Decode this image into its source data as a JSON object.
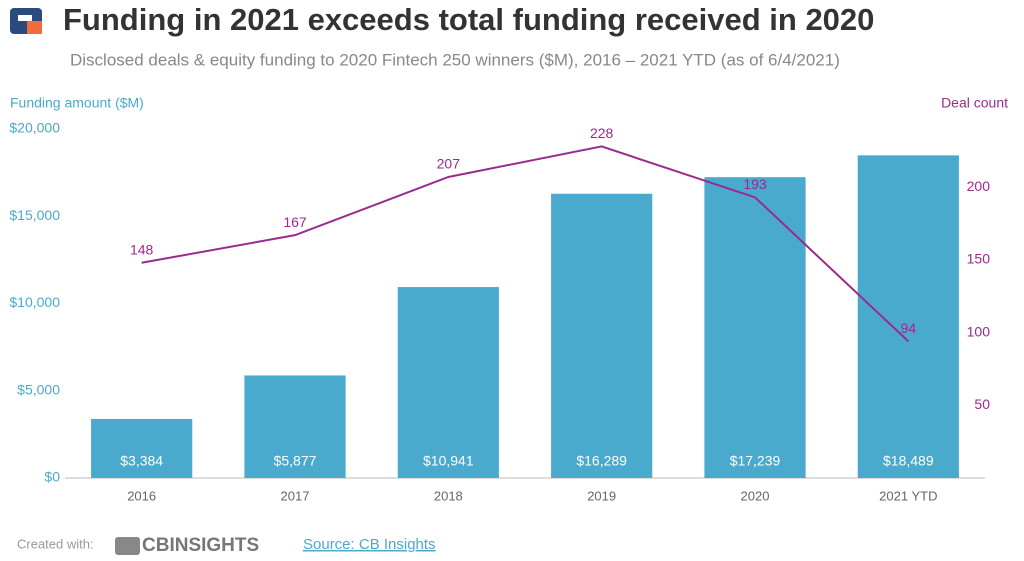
{
  "chart_data": {
    "type": "bar",
    "title": "Funding in 2021 exceeds total funding received in 2020",
    "subtitle": "Disclosed deals & equity funding to 2020 Fintech 250 winners ($M), 2016 – 2021 YTD (as of 6/4/2021)",
    "y_label": "Funding amount ($M)",
    "y2_label": "Deal count",
    "categories": [
      "2016",
      "2017",
      "2018",
      "2019",
      "2020",
      "2021 YTD"
    ],
    "series": [
      {
        "name": "Funding amount ($M)",
        "type": "bar",
        "color": "#4aaacd",
        "values": [
          3384,
          5877,
          10941,
          16289,
          17239,
          18489
        ],
        "value_labels": [
          "$3,384",
          "$5,877",
          "$10,941",
          "$16,289",
          "$17,239",
          "$18,489"
        ]
      },
      {
        "name": "Deal count",
        "type": "line",
        "axis": "y2",
        "color": "#9c2a8e",
        "values": [
          148,
          167,
          207,
          228,
          193,
          94
        ]
      }
    ],
    "ylim": [
      0,
      20000
    ],
    "yticks": [
      {
        "value": 0,
        "label": "$0"
      },
      {
        "value": 5000,
        "label": "$5,000"
      },
      {
        "value": 10000,
        "label": "$10,000"
      },
      {
        "value": 15000,
        "label": "$15,000"
      },
      {
        "value": 20000,
        "label": "$20,000"
      }
    ],
    "y2lim": [
      0,
      240
    ],
    "y2ticks": [
      50,
      100,
      150,
      200
    ],
    "grid": false
  },
  "footer": {
    "created_with": "Created with:",
    "brand": "CBINSIGHTS",
    "source": "Source: CB Insights"
  }
}
